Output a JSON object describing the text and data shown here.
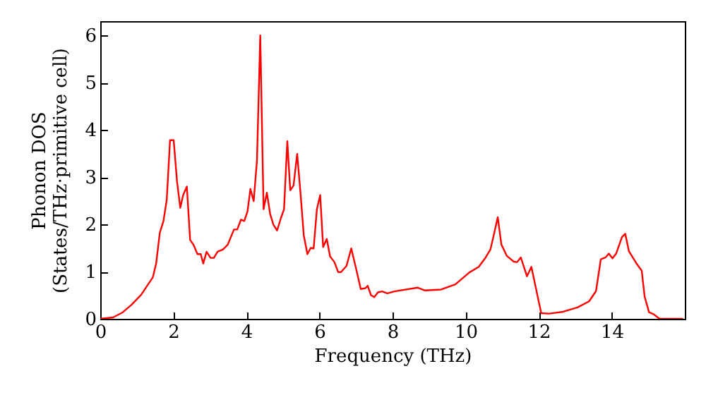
{
  "chart_data": {
    "type": "line",
    "xlabel": "Frequency (THz)",
    "ylabel": "Phonon DOS\n(States/THz·primitive cell)",
    "xlim": [
      0,
      16
    ],
    "ylim": [
      0,
      6.3
    ],
    "xticks": [
      0,
      2,
      4,
      6,
      8,
      10,
      12,
      14
    ],
    "yticks": [
      0,
      1,
      2,
      3,
      4,
      5,
      6
    ],
    "grid": false,
    "marker": "none",
    "line_style": "solid",
    "series": [
      {
        "color": "#ff0000",
        "x": [
          0,
          0.35,
          0.6,
          0.86,
          1.12,
          1.31,
          1.44,
          1.53,
          1.63,
          1.73,
          1.82,
          1.91,
          2.01,
          2.1,
          2.19,
          2.27,
          2.37,
          2.46,
          2.55,
          2.66,
          2.75,
          2.82,
          2.91,
          3.02,
          3.11,
          3.21,
          3.36,
          3.49,
          3.66,
          3.75,
          3.85,
          3.94,
          4.03,
          4.11,
          4.2,
          4.29,
          4.38,
          4.47,
          4.56,
          4.65,
          4.74,
          4.84,
          4.94,
          5.03,
          5.12,
          5.2,
          5.29,
          5.39,
          5.48,
          5.57,
          5.67,
          5.76,
          5.84,
          5.93,
          6.02,
          6.1,
          6.2,
          6.29,
          6.41,
          6.51,
          6.59,
          6.74,
          6.87,
          7.0,
          7.13,
          7.26,
          7.32,
          7.41,
          7.5,
          7.6,
          7.71,
          7.86,
          8.05,
          8.69,
          8.89,
          9.33,
          9.72,
          10.1,
          10.36,
          10.55,
          10.68,
          10.77,
          10.88,
          10.98,
          11.13,
          11.32,
          11.41,
          11.51,
          11.68,
          11.8,
          12.07,
          12.29,
          12.67,
          13.06,
          13.38,
          13.57,
          13.7,
          13.83,
          13.92,
          14.02,
          14.12,
          14.28,
          14.37,
          14.47,
          14.67,
          14.82,
          14.9,
          15.02,
          15.14,
          15.31,
          15.95
        ],
        "values": [
          0,
          0.03,
          0.13,
          0.3,
          0.51,
          0.73,
          0.88,
          1.17,
          1.82,
          2.07,
          2.52,
          3.78,
          3.78,
          2.92,
          2.35,
          2.62,
          2.8,
          1.67,
          1.57,
          1.37,
          1.37,
          1.17,
          1.42,
          1.29,
          1.29,
          1.42,
          1.47,
          1.57,
          1.89,
          1.89,
          2.1,
          2.07,
          2.27,
          2.75,
          2.49,
          3.36,
          6.0,
          2.32,
          2.67,
          2.22,
          1.99,
          1.87,
          2.12,
          2.32,
          3.76,
          2.72,
          2.82,
          3.49,
          2.67,
          1.77,
          1.37,
          1.5,
          1.49,
          2.32,
          2.62,
          1.52,
          1.69,
          1.32,
          1.2,
          0.99,
          0.99,
          1.12,
          1.49,
          1.07,
          0.63,
          0.65,
          0.7,
          0.5,
          0.46,
          0.56,
          0.58,
          0.54,
          0.58,
          0.66,
          0.6,
          0.62,
          0.73,
          0.98,
          1.1,
          1.3,
          1.47,
          1.77,
          2.15,
          1.57,
          1.33,
          1.21,
          1.2,
          1.3,
          0.9,
          1.1,
          0.12,
          0.11,
          0.15,
          0.24,
          0.37,
          0.59,
          1.26,
          1.3,
          1.38,
          1.28,
          1.38,
          1.73,
          1.8,
          1.43,
          1.18,
          1.02,
          0.47,
          0.14,
          0.1,
          0,
          0
        ]
      }
    ]
  }
}
